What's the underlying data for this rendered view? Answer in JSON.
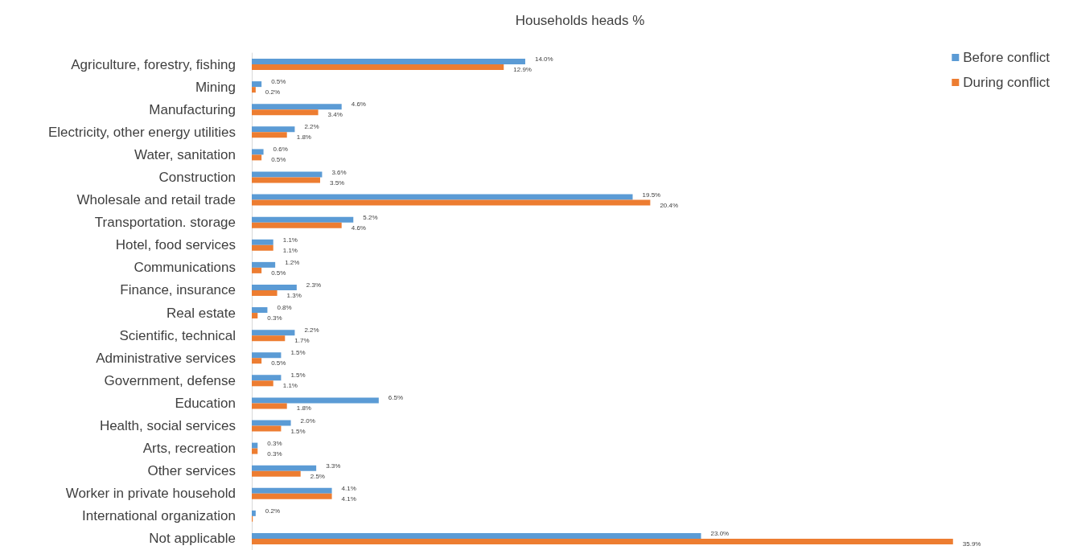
{
  "chart_data": {
    "type": "bar",
    "orientation": "horizontal",
    "title": "Households heads %",
    "categories": [
      "Agriculture, forestry, fishing",
      "Mining",
      "Manufacturing",
      "Electricity, other energy utilities",
      "Water, sanitation",
      "Construction",
      "Wholesale and retail trade",
      "Transportation. storage",
      "Hotel, food services",
      "Communications",
      "Finance, insurance",
      "Real estate",
      "Scientific, technical",
      "Administrative services",
      "Government, defense",
      "Education",
      "Health, social services",
      "Arts, recreation",
      "Other services",
      "Worker in private household",
      "International organization",
      "Not applicable"
    ],
    "series": [
      {
        "name": "Before conflict",
        "color": "#5b9bd5",
        "values": [
          14.0,
          0.5,
          4.6,
          2.2,
          0.6,
          3.6,
          19.5,
          5.2,
          1.1,
          1.2,
          2.3,
          0.8,
          2.2,
          1.5,
          1.5,
          6.5,
          2.0,
          0.3,
          3.3,
          4.1,
          0.2,
          23.0
        ],
        "value_labels": [
          "14.0%",
          "0.5%",
          "4.6%",
          "2.2%",
          "0.6%",
          "3.6%",
          "19.5%",
          "5.2%",
          "1.1%",
          "1.2%",
          "2.3%",
          "0.8%",
          "2.2%",
          "1.5%",
          "1.5%",
          "6.5%",
          "2.0%",
          "0.3%",
          "3.3%",
          "4.1%",
          "0.2%",
          "23.0%"
        ]
      },
      {
        "name": "During conflict",
        "color": "#ed7d31",
        "values": [
          12.9,
          0.2,
          3.4,
          1.8,
          0.5,
          3.5,
          20.4,
          4.6,
          1.1,
          0.5,
          1.3,
          0.3,
          1.7,
          0.5,
          1.1,
          1.8,
          1.5,
          0.3,
          2.5,
          4.1,
          0.05,
          35.9
        ],
        "value_labels": [
          "12.9%",
          "0.2%",
          "3.4%",
          "1.8%",
          "0.5%",
          "3.5%",
          "20.4%",
          "4.6%",
          "1.1%",
          "0.5%",
          "1.3%",
          "0.3%",
          "1.7%",
          "0.5%",
          "1.1%",
          "1.8%",
          "1.5%",
          "0.3%",
          "2.5%",
          "4.1%",
          null,
          "35.9%"
        ]
      }
    ],
    "grid": false,
    "legend": "top right"
  }
}
